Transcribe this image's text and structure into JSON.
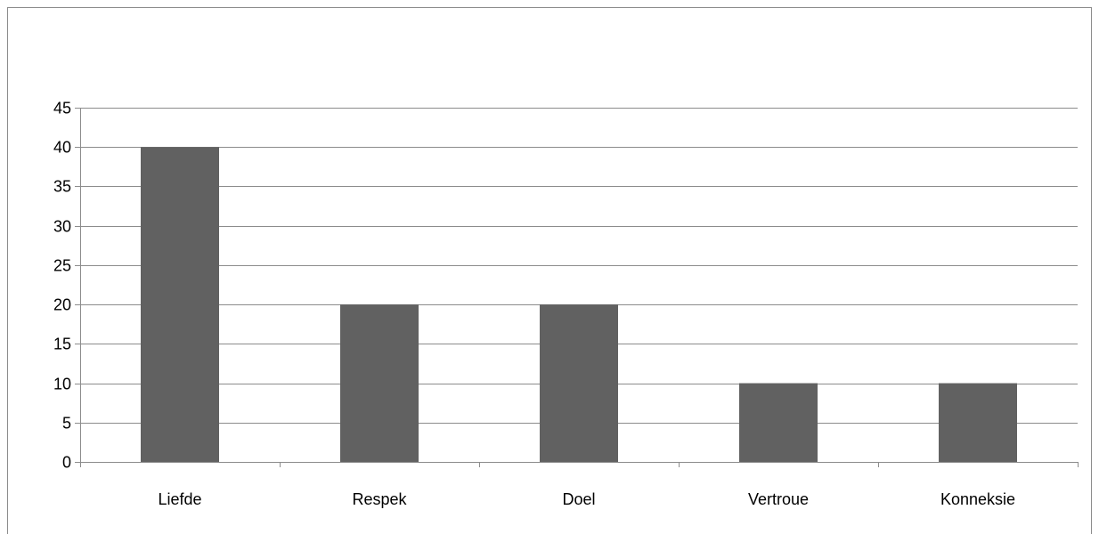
{
  "chart_data": {
    "type": "bar",
    "categories": [
      "Liefde",
      "Respek",
      "Doel",
      "Vertroue",
      "Konneksie"
    ],
    "values": [
      40,
      20,
      20,
      10,
      10
    ],
    "title": "",
    "xlabel": "",
    "ylabel": "",
    "ylim": [
      0,
      45
    ],
    "yticks": [
      "0",
      "5",
      "10",
      "15",
      "20",
      "25",
      "30",
      "35",
      "40",
      "45"
    ],
    "grid": true,
    "legend": "none",
    "colors": {
      "bar": "#616161",
      "grid": "#8c8c8c",
      "axis": "#8c8c8c"
    }
  }
}
